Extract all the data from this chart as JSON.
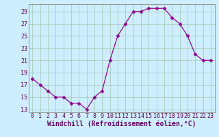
{
  "x": [
    0,
    1,
    2,
    3,
    4,
    5,
    6,
    7,
    8,
    9,
    10,
    11,
    12,
    13,
    14,
    15,
    16,
    17,
    18,
    19,
    20,
    21,
    22,
    23
  ],
  "y": [
    18,
    17,
    16,
    15,
    15,
    14,
    14,
    13,
    15,
    16,
    21,
    25,
    27,
    29,
    29,
    29.5,
    29.5,
    29.5,
    28,
    27,
    25,
    22,
    21,
    21
  ],
  "line_color": "#990099",
  "marker": "D",
  "marker_size": 2.5,
  "bg_color": "#cceeff",
  "grid_color": "#aaccbb",
  "xlabel": "Windchill (Refroidissement éolien,°C)",
  "xlabel_fontsize": 7,
  "yticks": [
    13,
    15,
    17,
    19,
    21,
    23,
    25,
    27,
    29
  ],
  "ylim": [
    12.5,
    30.2
  ],
  "xlim": [
    -0.5,
    23.5
  ],
  "xticks": [
    0,
    1,
    2,
    3,
    4,
    5,
    6,
    7,
    8,
    9,
    10,
    11,
    12,
    13,
    14,
    15,
    16,
    17,
    18,
    19,
    20,
    21,
    22,
    23
  ],
  "tick_fontsize": 6,
  "spine_color": "#888888",
  "tick_color": "#660066"
}
